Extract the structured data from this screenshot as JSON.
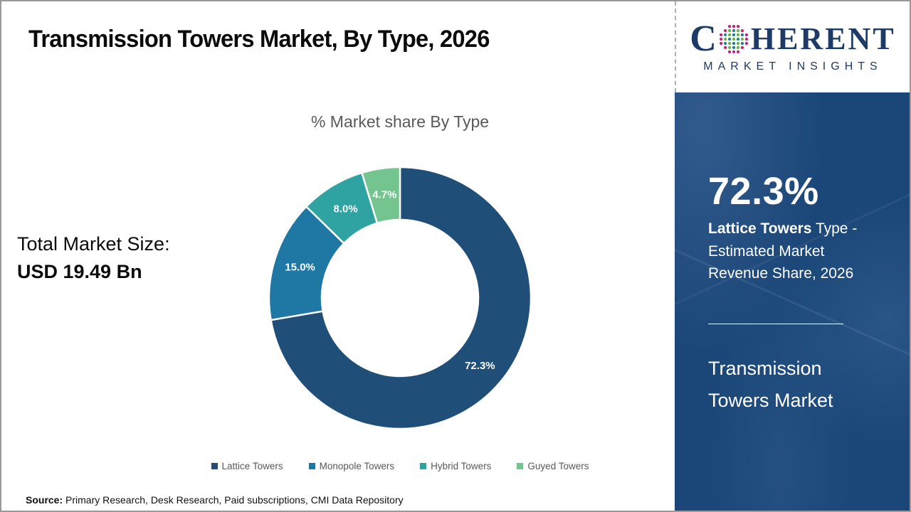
{
  "page": {
    "title": "Transmission Towers Market, By Type, 2026",
    "border_color": "#9A9A9A"
  },
  "logo": {
    "word_c": "C",
    "word_rest": "HERENT",
    "subtitle": "MARKET INSIGHTS",
    "text_color": "#1E3A66",
    "globe_colors": {
      "outer": "#C2217E",
      "teal": "#1F7F8C",
      "green": "#63B545"
    }
  },
  "left": {
    "total_label": "Total Market Size:",
    "total_value": "USD 19.49 Bn"
  },
  "chart_data": {
    "type": "pie",
    "donut": true,
    "title": "% Market share By Type",
    "title_color": "#595959",
    "start_angle_deg": 0,
    "direction": "clockwise",
    "categories": [
      "Lattice Towers",
      "Monopole Towers",
      "Hybrid Towers",
      "Guyed Towers"
    ],
    "values": [
      72.3,
      15.0,
      8.0,
      4.7
    ],
    "labels": [
      "72.3%",
      "15.0%",
      "8.0%",
      "4.7%"
    ],
    "colors": [
      "#1F4E79",
      "#1F78A4",
      "#2FA2A2",
      "#74C48F"
    ],
    "label_color": "#FFFFFF",
    "separator_color": "#FFFFFF",
    "legend_position": "bottom",
    "legend_text_color": "#595959"
  },
  "sidebar": {
    "bg_color": "#1B4678",
    "stat_value": "72.3%",
    "stat_bold": "Lattice Towers",
    "stat_rest": "Type - Estimated Market Revenue Share, 2026",
    "panel_title": "Transmission Towers Market"
  },
  "footer": {
    "source_label": "Source:",
    "source_text": "Primary Research, Desk Research, Paid subscriptions, CMI Data Repository"
  }
}
